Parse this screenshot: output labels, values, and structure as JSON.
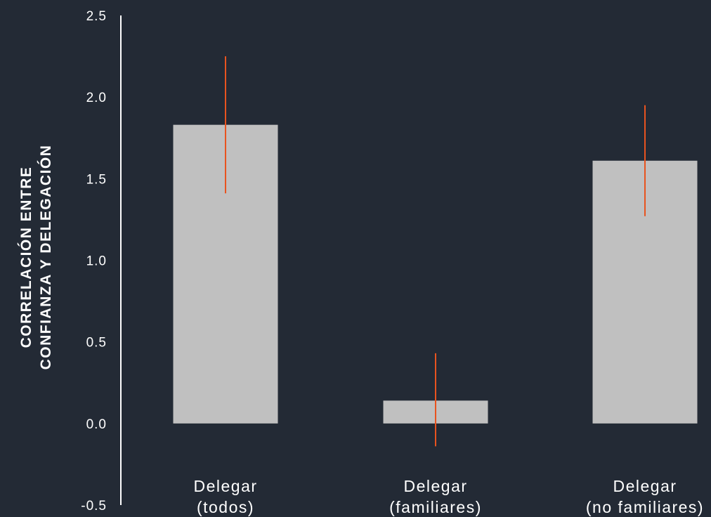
{
  "colors": {
    "background": "#232a35",
    "bar": "#c0c0c0",
    "error_bar": "#e8531f",
    "axis": "#ffffff",
    "text": "#ffffff"
  },
  "chart_data": {
    "type": "bar",
    "title": "",
    "xlabel": "",
    "ylabel_lines": [
      "CORRELACIÓN ENTRE",
      "CONFIANZA Y DELEGACIÓN"
    ],
    "ylim": [
      -0.5,
      2.5
    ],
    "yticks": [
      2.5,
      2.0,
      1.5,
      1.0,
      0.5,
      0.0,
      -0.5
    ],
    "ytick_labels": [
      "2.5",
      "2.0",
      "1.5",
      "1.0",
      "0.5",
      "0.0",
      "-0.5"
    ],
    "grid": false,
    "categories": [
      {
        "lines": [
          "Delegar",
          "(todos)"
        ],
        "value": 1.83,
        "err_low": 1.41,
        "err_high": 2.25
      },
      {
        "lines": [
          "Delegar",
          "(familiares)"
        ],
        "value": 0.14,
        "err_low": -0.14,
        "err_high": 0.43
      },
      {
        "lines": [
          "Delegar",
          "(no familiares)"
        ],
        "value": 1.61,
        "err_low": 1.27,
        "err_high": 1.95
      }
    ]
  }
}
